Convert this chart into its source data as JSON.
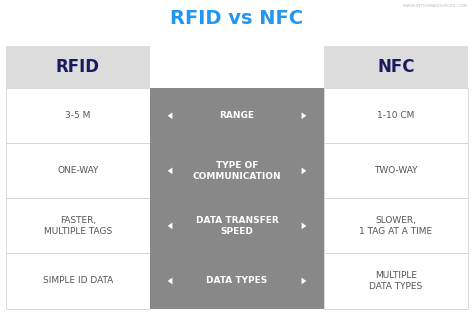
{
  "title": "RFID vs NFC",
  "title_color": "#2196F3",
  "watermark": "WWW.INTEGRASOURCES.COM",
  "bg_color": "#FFFFFF",
  "header_bg": "#DCDCDC",
  "center_bg": "#888888",
  "header_left": "RFID",
  "header_right": "NFC",
  "header_text_color": "#1a1a5e",
  "center_text_color": "#FFFFFF",
  "side_text_color": "#555555",
  "rows": [
    {
      "left": "3-5 M",
      "center": "RANGE",
      "right": "1-10 CM"
    },
    {
      "left": "ONE-WAY",
      "center": "TYPE OF\nCOMMUNICATION",
      "right": "TWO-WAY"
    },
    {
      "left": "FASTER,\nMULTIPLE TAGS",
      "center": "DATA TRANSFER\nSPEED",
      "right": "SLOWER,\n1 TAG AT A TIME"
    },
    {
      "left": "SIMPLE ID DATA",
      "center": "DATA TYPES",
      "right": "MULTIPLE\nDATA TYPES"
    }
  ]
}
